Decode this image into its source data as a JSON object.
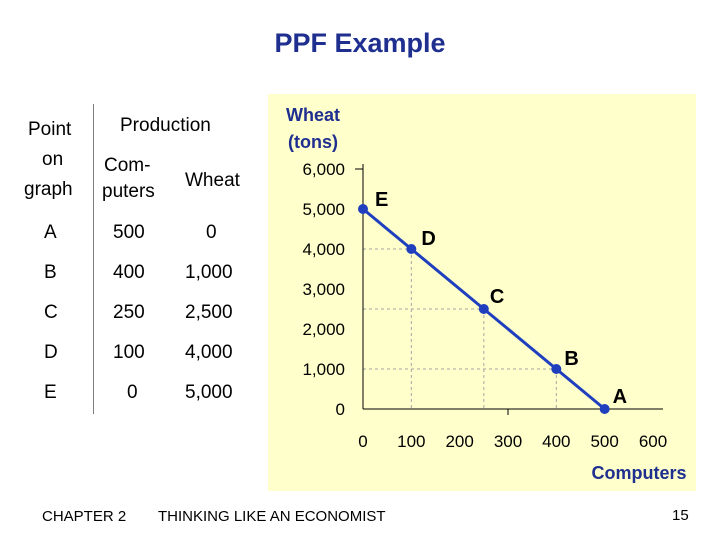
{
  "title": "PPF Example",
  "table": {
    "header": {
      "point_col": [
        "Point",
        "on",
        "graph"
      ],
      "production": "Production",
      "computers_col": [
        "Com-",
        "puters"
      ],
      "wheat_col": "Wheat"
    },
    "rows": [
      {
        "point": "A",
        "computers": "500",
        "wheat": "0"
      },
      {
        "point": "B",
        "computers": "400",
        "wheat": "1,000"
      },
      {
        "point": "C",
        "computers": "250",
        "wheat": "2,500"
      },
      {
        "point": "D",
        "computers": "100",
        "wheat": "4,000"
      },
      {
        "point": "E",
        "computers": "0",
        "wheat": "5,000"
      }
    ]
  },
  "chart_data": {
    "type": "line",
    "ylabel": [
      "Wheat",
      "(tons)"
    ],
    "xlabel": "Computers",
    "x_ticks": [
      0,
      100,
      200,
      300,
      400,
      500,
      600
    ],
    "x_tick_labels": [
      "0",
      "100",
      "200",
      "300",
      "400",
      "500",
      "600"
    ],
    "y_ticks": [
      0,
      1000,
      2000,
      3000,
      4000,
      5000,
      6000
    ],
    "y_tick_labels": [
      "0",
      "1,000",
      "2,000",
      "3,000",
      "4,000",
      "5,000",
      "6,000"
    ],
    "xlim": [
      0,
      600
    ],
    "ylim": [
      0,
      6000
    ],
    "points": [
      {
        "label": "E",
        "x": 0,
        "y": 5000
      },
      {
        "label": "D",
        "x": 100,
        "y": 4000
      },
      {
        "label": "C",
        "x": 250,
        "y": 2500
      },
      {
        "label": "B",
        "x": 400,
        "y": 1000
      },
      {
        "label": "A",
        "x": 500,
        "y": 0
      }
    ],
    "line_color": "#1f3fbf",
    "point_color": "#1f3fbf",
    "label_color": "#000000",
    "background": "#ffffcc",
    "dropline_color": "#a6a6a6"
  },
  "footer": {
    "chapter": "CHAPTER 2",
    "chapter_title": "THINKING LIKE AN ECONOMIST",
    "page": "15"
  }
}
